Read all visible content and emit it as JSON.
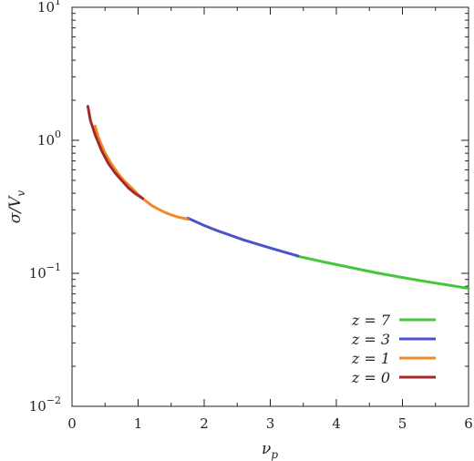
{
  "chart_data": {
    "type": "line",
    "title": "",
    "xlabel_main": "ν",
    "xlabel_sub": "p",
    "ylabel_main": "σ/V",
    "ylabel_sub": "v",
    "xlim": [
      0,
      6
    ],
    "ylim": [
      0.01,
      10
    ],
    "yscale": "log",
    "grid": false,
    "legend_position": "lower-right",
    "x_ticks": [
      {
        "value": 0,
        "label": "0"
      },
      {
        "value": 1,
        "label": "1"
      },
      {
        "value": 2,
        "label": "2"
      },
      {
        "value": 3,
        "label": "3"
      },
      {
        "value": 4,
        "label": "4"
      },
      {
        "value": 5,
        "label": "5"
      },
      {
        "value": 6,
        "label": "6"
      }
    ],
    "y_ticks": [
      {
        "value": 0.01,
        "base": "10",
        "exp": "−2"
      },
      {
        "value": 0.1,
        "base": "10",
        "exp": "−1"
      },
      {
        "value": 1,
        "base": "10",
        "exp": "0"
      },
      {
        "value": 10,
        "base": "10",
        "exp": "1"
      }
    ],
    "series": [
      {
        "name": "z = 7",
        "color": "#44c83a",
        "points": [
          [
            3.4,
            0.135
          ],
          [
            3.8,
            0.122
          ],
          [
            4.2,
            0.111
          ],
          [
            4.6,
            0.101
          ],
          [
            5.0,
            0.093
          ],
          [
            5.4,
            0.086
          ],
          [
            5.8,
            0.08
          ],
          [
            6.0,
            0.077
          ]
        ]
      },
      {
        "name": "z = 3",
        "color": "#4a54c8",
        "points": [
          [
            1.75,
            0.26
          ],
          [
            2.0,
            0.229
          ],
          [
            2.2,
            0.209
          ],
          [
            2.4,
            0.193
          ],
          [
            2.6,
            0.178
          ],
          [
            2.8,
            0.166
          ],
          [
            3.0,
            0.155
          ],
          [
            3.2,
            0.145
          ],
          [
            3.42,
            0.135
          ]
        ]
      },
      {
        "name": "z = 1",
        "color": "#f08a28",
        "points": [
          [
            0.35,
            1.28
          ],
          [
            0.4,
            1.05
          ],
          [
            0.5,
            0.8
          ],
          [
            0.6,
            0.66
          ],
          [
            0.7,
            0.56
          ],
          [
            0.8,
            0.49
          ],
          [
            0.9,
            0.44
          ],
          [
            1.0,
            0.39
          ],
          [
            1.1,
            0.355
          ],
          [
            1.2,
            0.325
          ],
          [
            1.3,
            0.305
          ],
          [
            1.4,
            0.288
          ],
          [
            1.5,
            0.275
          ],
          [
            1.6,
            0.265
          ],
          [
            1.75,
            0.255
          ]
        ]
      },
      {
        "name": "z = 0",
        "color": "#a32a2a",
        "points": [
          [
            0.24,
            1.8
          ],
          [
            0.28,
            1.4
          ],
          [
            0.35,
            1.1
          ],
          [
            0.45,
            0.83
          ],
          [
            0.55,
            0.67
          ],
          [
            0.65,
            0.57
          ],
          [
            0.75,
            0.5
          ],
          [
            0.85,
            0.44
          ],
          [
            0.95,
            0.4
          ],
          [
            1.07,
            0.365
          ]
        ]
      }
    ],
    "legend_order": [
      "z = 7",
      "z = 3",
      "z = 1",
      "z = 0"
    ]
  }
}
